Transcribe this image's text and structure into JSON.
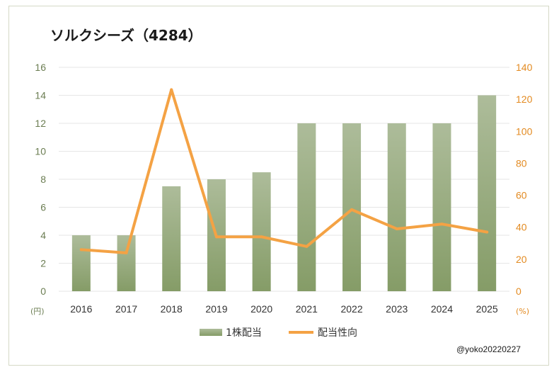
{
  "chart_data": {
    "type": "bar+line",
    "title": "ソルクシーズ（4284）",
    "categories": [
      "2016",
      "2017",
      "2018",
      "2019",
      "2020",
      "2021",
      "2022",
      "2023",
      "2024",
      "2025"
    ],
    "series": [
      {
        "name": "1株配当",
        "type": "bar",
        "axis": "left",
        "values": [
          4,
          4,
          7.5,
          8,
          8.5,
          12,
          12,
          12,
          12,
          14
        ]
      },
      {
        "name": "配当性向",
        "type": "line",
        "axis": "right",
        "values": [
          26,
          24,
          126,
          34,
          34,
          28,
          51,
          39,
          42,
          37
        ]
      }
    ],
    "left_axis": {
      "unit": "(円)",
      "ylim": [
        0,
        16
      ],
      "ticks": [
        "0",
        "2",
        "4",
        "6",
        "8",
        "10",
        "12",
        "14",
        "16"
      ]
    },
    "right_axis": {
      "unit": "(%)",
      "ylim": [
        0,
        140
      ],
      "ticks": [
        "0",
        "20",
        "40",
        "60",
        "80",
        "100",
        "120",
        "140"
      ]
    },
    "grid": true,
    "legend_position": "bottom"
  },
  "credit": "@yoko20220227",
  "colors": {
    "bar_top": "#adbc9a",
    "bar_bottom": "#859c67",
    "line": "#f4a244",
    "grid": "#e6e6e6",
    "left_axis_text": "#6b7d52",
    "right_axis_text": "#e38b22"
  }
}
